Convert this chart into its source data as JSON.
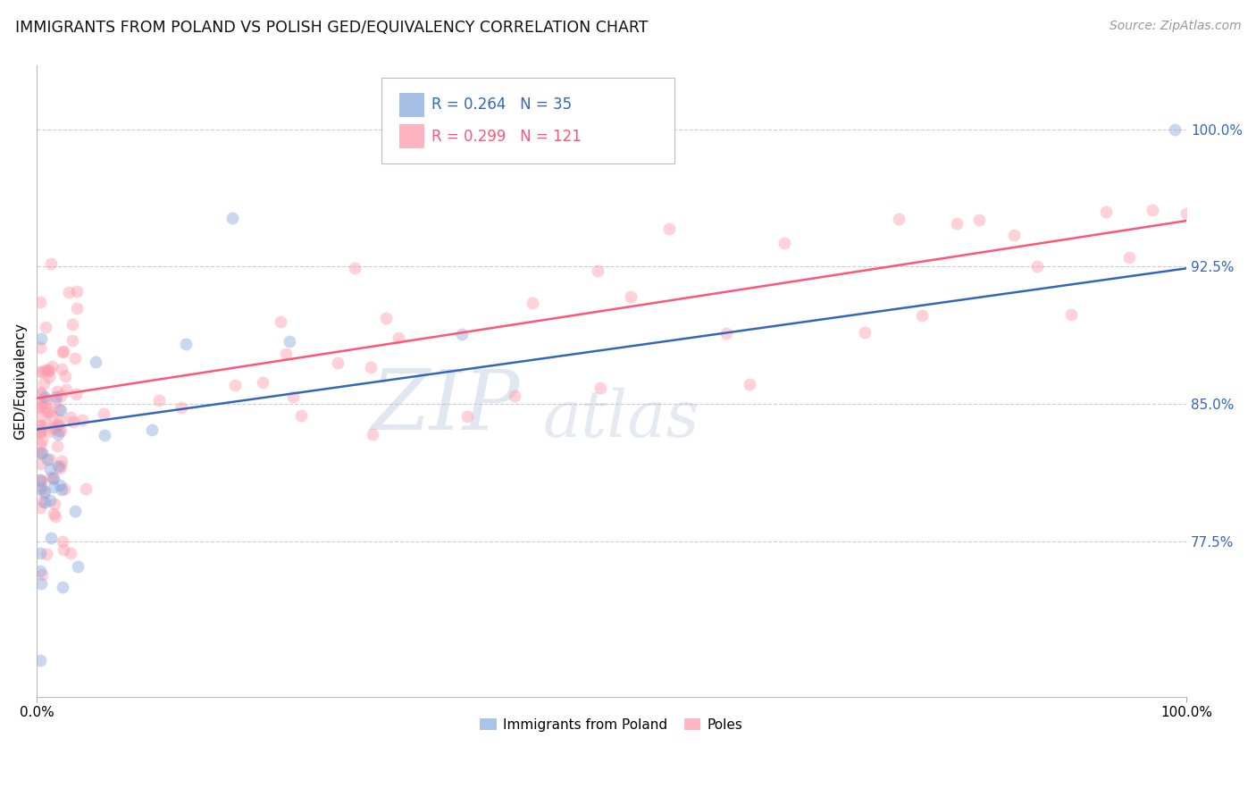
{
  "title": "IMMIGRANTS FROM POLAND VS POLISH GED/EQUIVALENCY CORRELATION CHART",
  "source": "Source: ZipAtlas.com",
  "ylabel": "GED/Equivalency",
  "ytick_labels": [
    "77.5%",
    "85.0%",
    "92.5%",
    "100.0%"
  ],
  "ytick_values": [
    0.775,
    0.85,
    0.925,
    1.0
  ],
  "xlim": [
    0.0,
    1.0
  ],
  "ylim": [
    0.69,
    1.035
  ],
  "legend_blue_r": "R = 0.264",
  "legend_blue_n": "N = 35",
  "legend_pink_r": "R = 0.299",
  "legend_pink_n": "N = 121",
  "legend_label_blue": "Immigrants from Poland",
  "legend_label_pink": "Poles",
  "blue_color": "#88AADD",
  "pink_color": "#FF99AA",
  "blue_line_color": "#3366BB",
  "pink_line_color": "#FF5577",
  "watermark_zip": "ZIP",
  "watermark_atlas": "atlas",
  "background_color": "#FFFFFF",
  "grid_color": "#CCCCCC",
  "title_fontsize": 12.5,
  "axis_label_fontsize": 11,
  "tick_fontsize": 11,
  "source_fontsize": 10,
  "scatter_size": 100,
  "scatter_alpha": 0.45,
  "line_width": 1.8,
  "blue_line_intercept": 0.836,
  "blue_line_slope": 0.088,
  "pink_line_intercept": 0.853,
  "pink_line_slope": 0.097
}
